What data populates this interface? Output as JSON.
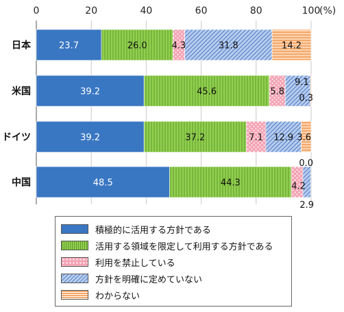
{
  "chart_data": {
    "type": "bar",
    "orientation": "horizontal",
    "stacked": true,
    "title": "",
    "xlabel": "",
    "ylabel": "",
    "xlim": [
      0,
      100
    ],
    "x_ticks": [
      "0",
      "20",
      "40",
      "60",
      "80",
      "100"
    ],
    "x_unit": "(%)",
    "grid": true,
    "legend_position": "bottom",
    "categories": [
      "日本",
      "米国",
      "ドイツ",
      "中国"
    ],
    "series": [
      {
        "name": "積極的に活用する方針である",
        "values": [
          23.7,
          39.2,
          39.2,
          48.5
        ],
        "labels": [
          "23.7",
          "39.2",
          "39.2",
          "48.5"
        ],
        "color": "#3a77c2",
        "pattern": "solid"
      },
      {
        "name": "活用する領域を限定して利用する方針である",
        "values": [
          26.0,
          45.6,
          37.2,
          44.3
        ],
        "labels": [
          "26.0",
          "45.6",
          "37.2",
          "44.3"
        ],
        "color": "#92d050",
        "pattern": "vertical-lines"
      },
      {
        "name": "利用を禁止している",
        "values": [
          4.3,
          5.8,
          7.1,
          4.2
        ],
        "labels": [
          "4.3",
          "5.8",
          "7.1",
          "4.2"
        ],
        "color": "#f4a4b4",
        "pattern": "dots"
      },
      {
        "name": "方針を明確に定めていない",
        "values": [
          31.8,
          9.1,
          12.9,
          2.9
        ],
        "labels": [
          "31.8",
          "9.1",
          "12.9",
          "2.9"
        ],
        "color": "#9ebbe6",
        "pattern": "diagonal"
      },
      {
        "name": "わからない",
        "values": [
          14.2,
          0.3,
          3.6,
          0.0
        ],
        "labels": [
          "14.2",
          "0.3",
          "3.6",
          "0.0"
        ],
        "color": "#f5a868",
        "pattern": "horizontal-lines"
      }
    ]
  }
}
